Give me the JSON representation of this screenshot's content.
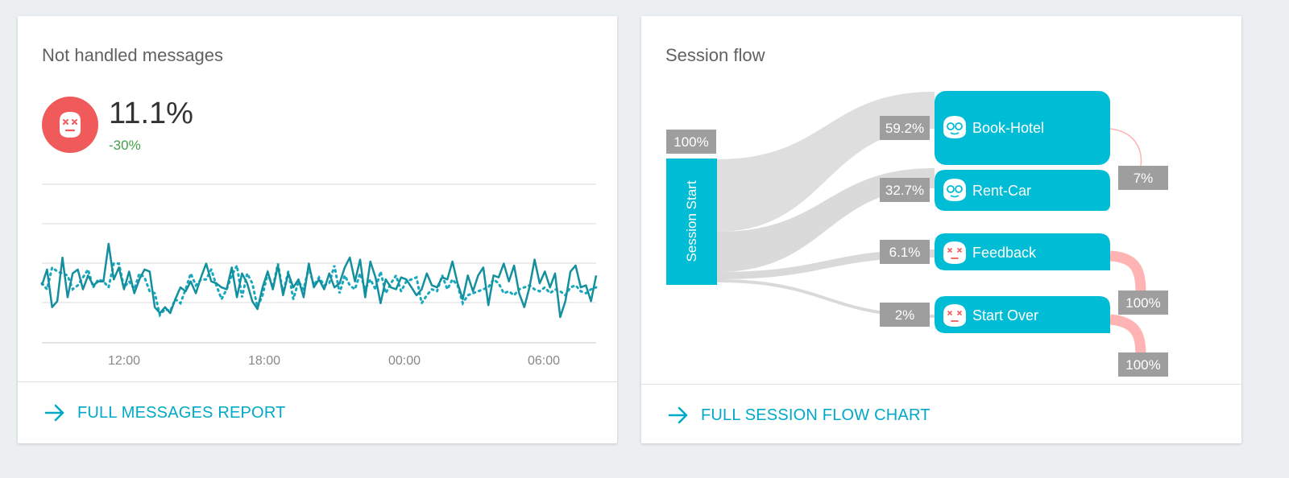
{
  "messages_card": {
    "title": "Not handled messages",
    "kpi_value": "11.1%",
    "kpi_delta": "-30%",
    "kpi_icon": "dead-bot-face-icon",
    "footer_link": "FULL MESSAGES REPORT"
  },
  "session_card": {
    "title": "Session flow",
    "footer_link": "FULL SESSION FLOW CHART",
    "start_node": {
      "label": "Session Start",
      "pct": "100%"
    },
    "nodes": [
      {
        "label": "Book-Hotel",
        "pct": "59.2%",
        "icon": "happy-bot-icon",
        "exit_pct": "7%"
      },
      {
        "label": "Rent-Car",
        "pct": "32.7%",
        "icon": "happy-bot-icon"
      },
      {
        "label": "Feedback",
        "pct": "6.1%",
        "icon": "dead-bot-face-icon",
        "exit_pct": "100%"
      },
      {
        "label": "Start Over",
        "pct": "2%",
        "icon": "dead-bot-face-icon",
        "exit_pct": "100%"
      }
    ]
  },
  "colors": {
    "accent": "#00bcd4",
    "link": "#00a9c8",
    "error": "#f05a5a",
    "positive": "#43a047",
    "flow": "#dadada",
    "exit": "#ffb3b3",
    "badge": "#9e9e9e"
  },
  "chart_data": {
    "type": "line",
    "title": "",
    "xlabel": "",
    "ylabel": "",
    "x_ticks": [
      "12:00",
      "18:00",
      "00:00",
      "06:00"
    ],
    "grid": true,
    "series": [
      {
        "style": "solid",
        "values": [
          49,
          57,
          38,
          41,
          63,
          43,
          55,
          57,
          47,
          54,
          49,
          51,
          51,
          70,
          52,
          58,
          47,
          56,
          45,
          52,
          57,
          56,
          38,
          35,
          38,
          35,
          42,
          48,
          46,
          51,
          45,
          53,
          60,
          51,
          50,
          48,
          47,
          58,
          43,
          55,
          50,
          41,
          37,
          48,
          56,
          47,
          59,
          44,
          55,
          48,
          52,
          43,
          60,
          48,
          52,
          47,
          55,
          48,
          50,
          58,
          63,
          51,
          62,
          43,
          61,
          53,
          40,
          52,
          48,
          47,
          53,
          52,
          48,
          44,
          47,
          55,
          49,
          48,
          53,
          52,
          61,
          50,
          42,
          54,
          46,
          54,
          58,
          39,
          54,
          53,
          60,
          51,
          59,
          45,
          38,
          48,
          62,
          50,
          56,
          48,
          55,
          33,
          41,
          56,
          59,
          48,
          49,
          41,
          54
        ]
      },
      {
        "style": "dotted",
        "values": [
          50,
          47,
          58,
          56,
          55,
          54,
          47,
          49,
          53,
          57,
          48,
          52,
          51,
          48,
          60,
          60,
          48,
          51,
          47,
          55,
          53,
          46,
          45,
          34,
          37,
          36,
          42,
          40,
          47,
          55,
          49,
          52,
          52,
          57,
          49,
          42,
          47,
          54,
          59,
          43,
          55,
          50,
          38,
          44,
          55,
          48,
          60,
          45,
          56,
          42,
          51,
          47,
          58,
          49,
          53,
          49,
          50,
          59,
          45,
          54,
          49,
          47,
          55,
          47,
          52,
          47,
          56,
          45,
          50,
          54,
          46,
          51,
          52,
          53,
          40,
          44,
          47,
          46,
          54,
          47,
          52,
          49,
          40,
          44,
          45,
          46,
          47,
          48,
          52,
          50,
          45,
          46,
          44,
          47,
          48,
          49,
          47,
          46,
          48,
          45,
          47,
          46,
          44,
          48,
          49,
          46,
          45,
          47,
          48
        ]
      }
    ]
  }
}
